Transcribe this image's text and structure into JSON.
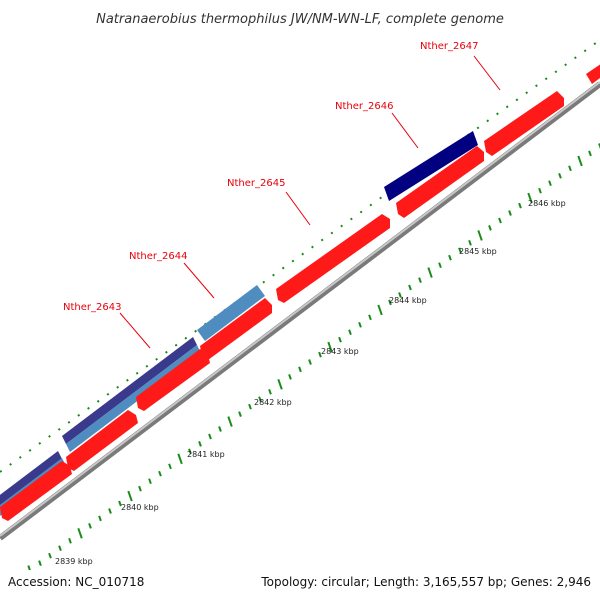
{
  "title": "Natranaerobius thermophilus JW/NM-WN-LF, complete genome",
  "footer": {
    "accession": "Accession: NC_010718",
    "summary": "Topology: circular; Length: 3,165,557 bp; Genes: 2,946"
  },
  "colors": {
    "forward_gene": "#ff1a1a",
    "reverse_gene_light": "#4f8cc0",
    "reverse_gene_dark": "#3a3a8c",
    "reverse_gene_navy": "#000080",
    "backbone": "#999999",
    "tick": "#1a8c1a",
    "label": "#e8000b"
  },
  "axis_labels": [
    "2839 kbp",
    "2840 kbp",
    "2841 kbp",
    "2842 kbp",
    "2843 kbp",
    "2844 kbp",
    "2845 kbp",
    "2846 kbp"
  ],
  "gene_labels": [
    "Nther_2643",
    "Nther_2644",
    "Nther_2645",
    "Nther_2646",
    "Nther_2647"
  ]
}
